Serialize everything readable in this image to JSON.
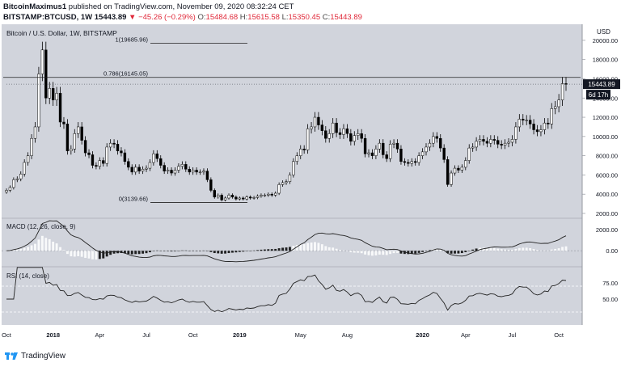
{
  "header": {
    "author": "BitcoinMaximus1",
    "published_text": "published on TradingView.com, November 09, 2020 08:32:24 CET",
    "symbol": "BITSTAMP:BTCUSD, 1W",
    "last": "15443.89",
    "change": "▼ −45.26 (−0.29%)",
    "open_label": "O:",
    "open": "15484.68",
    "high_label": "H:",
    "high": "15615.58",
    "low_label": "L:",
    "low": "15350.45",
    "close_label": "C:",
    "close": "15443.89"
  },
  "footer": {
    "brand": "TradingView"
  },
  "colors": {
    "panel_bg": "#d1d4dc",
    "up": "#ffffff",
    "down": "#000000",
    "fib_line": "#222222",
    "macd_line": "#222222",
    "rsi_line": "#222222",
    "price_label_bg": "#131722"
  },
  "chart_data": [
    {
      "type": "candlestick",
      "title": "Bitcoin / U.S. Dollar, 1W, BITSTAMP",
      "ylabel": "USD",
      "ylim": [
        2000,
        21000
      ],
      "y_ticks": [
        2000,
        4000,
        6000,
        8000,
        10000,
        12000,
        14000,
        16000,
        18000,
        20000
      ],
      "y_tick_labels": [
        "2000.00",
        "4000.00",
        "6000.00",
        "8000.00",
        "10000.00",
        "12000.00",
        "14000.00",
        "16000.00",
        "18000.00",
        "20000.00"
      ],
      "x_tick_labels": [
        "Oct",
        "2018",
        "Apr",
        "Jul",
        "Oct",
        "2019",
        "May",
        "Aug",
        "2020",
        "Apr",
        "Jul",
        "Oct"
      ],
      "x_tick_weeks": [
        0,
        13,
        26,
        39,
        52,
        65,
        82,
        95,
        116,
        128,
        141,
        154
      ],
      "close_series": [
        4400,
        4700,
        5500,
        5600,
        6100,
        7300,
        8000,
        9800,
        11000,
        16500,
        19000,
        14000,
        15000,
        13800,
        14500,
        11500,
        11300,
        8500,
        8700,
        10300,
        11000,
        9600,
        8300,
        8100,
        7000,
        6900,
        7500,
        7200,
        8900,
        9300,
        9200,
        8500,
        8300,
        7400,
        6800,
        6300,
        6800,
        6400,
        6600,
        6700,
        7300,
        8200,
        7700,
        7000,
        6400,
        6500,
        6200,
        6500,
        6900,
        7100,
        6600,
        6300,
        6500,
        6300,
        6300,
        6400,
        5500,
        4400,
        3700,
        3900,
        3400,
        3600,
        3900,
        3700,
        3500,
        3600,
        3500,
        3700,
        3600,
        3650,
        3800,
        3900,
        3900,
        4000,
        3900,
        4100,
        5000,
        5200,
        5300,
        6000,
        7400,
        8000,
        8700,
        8600,
        10800,
        11000,
        12000,
        11200,
        10600,
        9800,
        10300,
        11400,
        10400,
        10200,
        10800,
        10300,
        9500,
        10100,
        10300,
        9800,
        8200,
        8300,
        8000,
        8700,
        9300,
        8100,
        7700,
        9200,
        9300,
        8700,
        7400,
        7300,
        7200,
        7400,
        7300,
        8000,
        8400,
        8900,
        9300,
        10000,
        9800,
        8800,
        7600,
        5000,
        6200,
        6700,
        6500,
        6800,
        7500,
        8800,
        8900,
        9500,
        9700,
        9500,
        9300,
        9700,
        9600,
        9200,
        9100,
        9300,
        9400,
        9700,
        11000,
        11800,
        11700,
        11700,
        11300,
        10700,
        10500,
        10700,
        11400,
        11300,
        12900,
        13100,
        13800,
        15500,
        15443
      ]
    },
    {
      "type": "line",
      "annotations": [
        {
          "label": "1(19685.96)",
          "value": 19685.96
        },
        {
          "label": "0.786(16145.05)",
          "value": 16145.05
        },
        {
          "label": "0(3139.66)",
          "value": 3139.66
        }
      ],
      "current_price_label": "15443.89",
      "countdown_label": "6d 17h"
    },
    {
      "type": "line",
      "title": "MACD (12, 26, close, 9)",
      "ylim": [
        -1200,
        2600
      ],
      "y_ticks": [
        0,
        2000
      ],
      "y_tick_labels": [
        "0.00",
        "2000.00"
      ]
    },
    {
      "type": "line",
      "title": "RSI (14, close)",
      "ylim": [
        15,
        95
      ],
      "y_ticks": [
        50,
        75
      ],
      "y_tick_labels": [
        "50.00",
        "75.00"
      ],
      "bands": [
        70,
        30
      ]
    }
  ]
}
